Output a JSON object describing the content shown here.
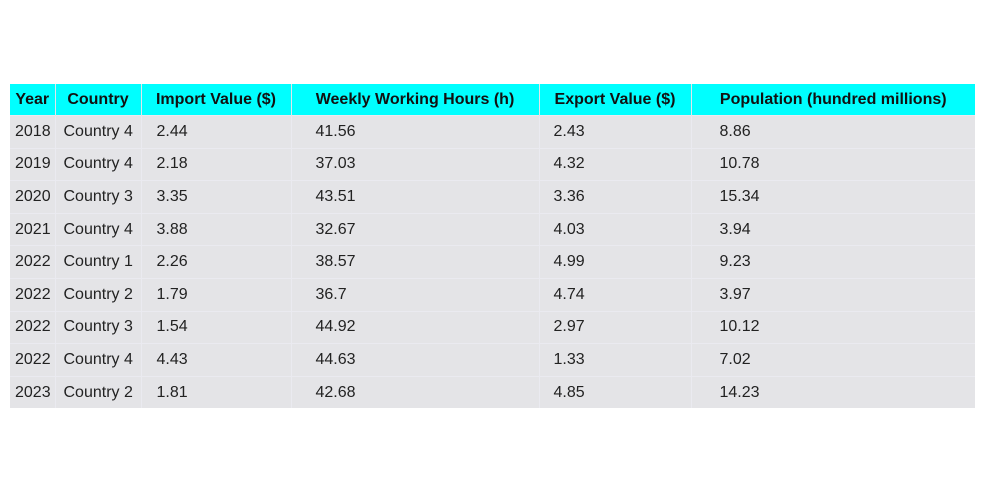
{
  "chart_data": {
    "type": "table",
    "columns": [
      "Year",
      "Country",
      "Import Value ($)",
      "Weekly Working Hours (h)",
      "Export Value ($)",
      "Population (hundred millions)"
    ],
    "rows": [
      [
        "2018",
        "Country 4",
        "2.44",
        "41.56",
        "2.43",
        "8.86"
      ],
      [
        "2019",
        "Country 4",
        "2.18",
        "37.03",
        "4.32",
        "10.78"
      ],
      [
        "2020",
        "Country 3",
        "3.35",
        "43.51",
        "3.36",
        "15.34"
      ],
      [
        "2021",
        "Country 4",
        "3.88",
        "32.67",
        "4.03",
        "3.94"
      ],
      [
        "2022",
        "Country 1",
        "2.26",
        "38.57",
        "4.99",
        "9.23"
      ],
      [
        "2022",
        "Country 2",
        "1.79",
        "36.7",
        "4.74",
        "3.97"
      ],
      [
        "2022",
        "Country 3",
        "1.54",
        "44.92",
        "2.97",
        "10.12"
      ],
      [
        "2022",
        "Country 4",
        "4.43",
        "44.63",
        "1.33",
        "7.02"
      ],
      [
        "2023",
        "Country 2",
        "1.81",
        "42.68",
        "4.85",
        "14.23"
      ]
    ],
    "colors": {
      "header_bg": "#00ffff",
      "cell_bg": "#e4e4e7"
    }
  }
}
